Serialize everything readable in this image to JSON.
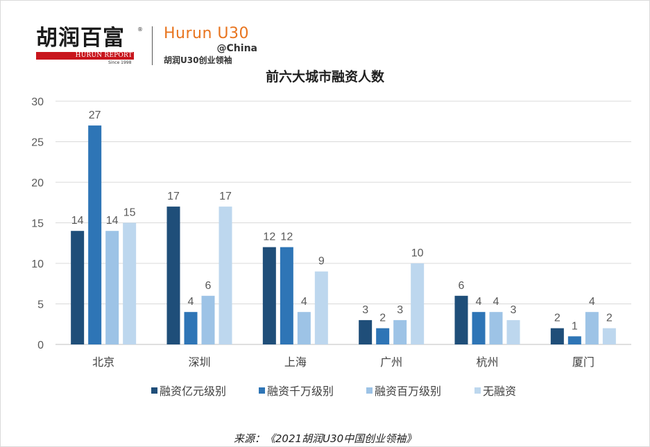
{
  "logo": {
    "hurun_cn": "胡润百富",
    "hurun_en": "HURUN REPORT",
    "since": "Since 1998",
    "registered": "®",
    "u30_title": "Hurun U30",
    "u30_sub": "@China",
    "u30_cn": "胡润U30创业领袖"
  },
  "source_text": "来源：《2021胡润U30中国创业领袖》",
  "colors": {
    "series": [
      "#1f4e79",
      "#2e75b6",
      "#9dc3e6",
      "#bdd7ee"
    ],
    "grid": "#d9d9d9",
    "axis": "#bfbfbf",
    "logo_red": "#c8161d",
    "logo_orange": "#e8741e"
  },
  "chart_data": {
    "type": "bar",
    "title": "前六大城市融资人数",
    "categories": [
      "北京",
      "深圳",
      "上海",
      "广州",
      "杭州",
      "厦门"
    ],
    "series": [
      {
        "name": "融资亿元级别",
        "values": [
          14,
          17,
          12,
          3,
          6,
          2
        ]
      },
      {
        "name": "融资千万级别",
        "values": [
          27,
          4,
          12,
          2,
          4,
          1
        ]
      },
      {
        "name": "融资百万级别",
        "values": [
          14,
          6,
          4,
          3,
          4,
          4
        ]
      },
      {
        "name": "无融资",
        "values": [
          15,
          17,
          9,
          10,
          3,
          2
        ]
      }
    ],
    "ylim": [
      0,
      30
    ],
    "yticks": [
      0,
      5,
      10,
      15,
      20,
      25,
      30
    ],
    "grid": true,
    "legend": "bottom",
    "data_labels": true
  }
}
